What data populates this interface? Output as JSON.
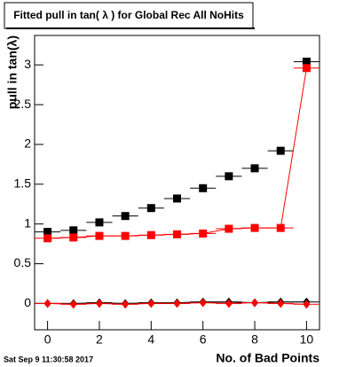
{
  "chart_data": {
    "type": "scatter",
    "title": "Fitted pull in tan( λ ) for Global Rec All NoHits",
    "x_label": "No. of Bad Points",
    "y_label": "pull in tan(λ)",
    "footer": "Sat Sep  9 11:30:58 2017",
    "x": [
      0,
      1,
      2,
      3,
      4,
      5,
      6,
      7,
      8,
      9,
      10
    ],
    "xerr": 0.5,
    "series": [
      {
        "color": "#000000",
        "marker": "square",
        "line": false,
        "values": [
          0.9,
          0.92,
          1.02,
          1.1,
          1.2,
          1.32,
          1.45,
          1.6,
          1.7,
          1.92,
          3.04
        ]
      },
      {
        "color": "#ff0000",
        "marker": "square",
        "line": true,
        "values": [
          0.82,
          0.83,
          0.85,
          0.85,
          0.86,
          0.87,
          0.88,
          0.94,
          0.95,
          0.95,
          2.96
        ]
      },
      {
        "color": "#000000",
        "marker": "diamond",
        "line": true,
        "values": [
          0,
          0,
          0.01,
          0,
          0.01,
          0.01,
          0.02,
          0.02,
          0.01,
          0.02,
          0.02
        ]
      },
      {
        "color": "#ff0000",
        "marker": "diamond",
        "line": true,
        "values": [
          0,
          -0.01,
          0,
          -0.01,
          0,
          0,
          0.01,
          0,
          0.01,
          0,
          -0.01
        ]
      }
    ],
    "xlim": [
      -0.5,
      10.5
    ],
    "ylim": [
      -0.33,
      3.37
    ],
    "xticks": [
      0,
      2,
      4,
      6,
      8,
      10
    ],
    "yticks": [
      0,
      0.5,
      1,
      1.5,
      2,
      2.5,
      3
    ]
  }
}
